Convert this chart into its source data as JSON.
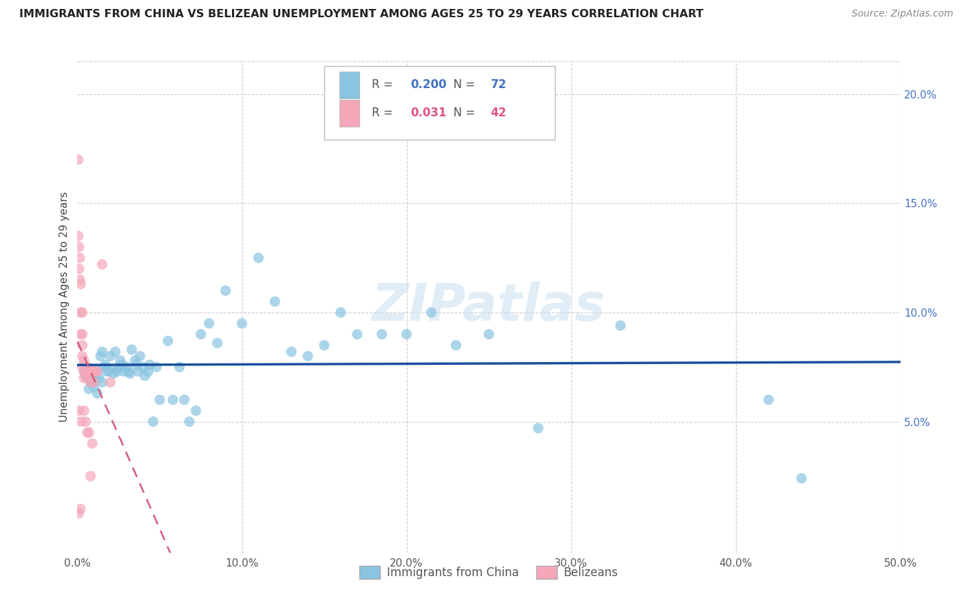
{
  "title": "IMMIGRANTS FROM CHINA VS BELIZEAN UNEMPLOYMENT AMONG AGES 25 TO 29 YEARS CORRELATION CHART",
  "source": "Source: ZipAtlas.com",
  "ylabel": "Unemployment Among Ages 25 to 29 years",
  "xlim": [
    0,
    0.5
  ],
  "ylim": [
    -0.01,
    0.215
  ],
  "xticks": [
    0.0,
    0.1,
    0.2,
    0.3,
    0.4,
    0.5
  ],
  "xticklabels": [
    "0.0%",
    "10.0%",
    "20.0%",
    "30.0%",
    "40.0%",
    "50.0%"
  ],
  "yticks": [
    0.05,
    0.1,
    0.15,
    0.2
  ],
  "yticklabels": [
    "5.0%",
    "10.0%",
    "15.0%",
    "20.0%"
  ],
  "blue_color": "#89c4e1",
  "pink_color": "#f4a7b9",
  "trend_blue": "#1a4f9c",
  "trend_pink": "#d45a7a",
  "legend_R1": "0.200",
  "legend_N1": "72",
  "legend_R2": "0.031",
  "legend_N2": "42",
  "watermark": "ZIPatlas",
  "blue_x": [
    0.004,
    0.005,
    0.006,
    0.007,
    0.007,
    0.008,
    0.009,
    0.009,
    0.01,
    0.01,
    0.011,
    0.012,
    0.012,
    0.013,
    0.014,
    0.015,
    0.015,
    0.016,
    0.017,
    0.018,
    0.019,
    0.02,
    0.021,
    0.022,
    0.023,
    0.024,
    0.025,
    0.026,
    0.027,
    0.028,
    0.03,
    0.031,
    0.032,
    0.033,
    0.035,
    0.036,
    0.037,
    0.038,
    0.04,
    0.041,
    0.043,
    0.044,
    0.046,
    0.048,
    0.05,
    0.055,
    0.058,
    0.062,
    0.065,
    0.068,
    0.072,
    0.075,
    0.08,
    0.085,
    0.09,
    0.1,
    0.11,
    0.12,
    0.13,
    0.14,
    0.15,
    0.16,
    0.17,
    0.185,
    0.2,
    0.215,
    0.23,
    0.25,
    0.28,
    0.33,
    0.42,
    0.44
  ],
  "blue_y": [
    0.073,
    0.071,
    0.07,
    0.072,
    0.065,
    0.068,
    0.072,
    0.069,
    0.066,
    0.068,
    0.071,
    0.063,
    0.074,
    0.07,
    0.08,
    0.068,
    0.082,
    0.075,
    0.076,
    0.073,
    0.073,
    0.08,
    0.074,
    0.072,
    0.082,
    0.073,
    0.075,
    0.078,
    0.076,
    0.073,
    0.075,
    0.073,
    0.072,
    0.083,
    0.078,
    0.076,
    0.073,
    0.08,
    0.075,
    0.071,
    0.073,
    0.076,
    0.05,
    0.075,
    0.06,
    0.087,
    0.06,
    0.075,
    0.06,
    0.05,
    0.055,
    0.09,
    0.095,
    0.086,
    0.11,
    0.095,
    0.125,
    0.105,
    0.082,
    0.08,
    0.085,
    0.1,
    0.09,
    0.09,
    0.09,
    0.1,
    0.085,
    0.09,
    0.047,
    0.094,
    0.06,
    0.024
  ],
  "pink_x": [
    0.0005,
    0.0005,
    0.0008,
    0.001,
    0.001,
    0.001,
    0.0015,
    0.0015,
    0.0018,
    0.002,
    0.002,
    0.002,
    0.002,
    0.003,
    0.003,
    0.003,
    0.003,
    0.003,
    0.004,
    0.004,
    0.004,
    0.004,
    0.005,
    0.005,
    0.005,
    0.006,
    0.006,
    0.006,
    0.006,
    0.007,
    0.007,
    0.008,
    0.008,
    0.008,
    0.009,
    0.009,
    0.01,
    0.01,
    0.011,
    0.012,
    0.015,
    0.02
  ],
  "pink_y": [
    0.17,
    0.135,
    0.008,
    0.13,
    0.12,
    0.055,
    0.125,
    0.115,
    0.01,
    0.113,
    0.1,
    0.09,
    0.05,
    0.1,
    0.09,
    0.085,
    0.08,
    0.075,
    0.078,
    0.073,
    0.07,
    0.055,
    0.075,
    0.072,
    0.05,
    0.075,
    0.073,
    0.07,
    0.045,
    0.073,
    0.045,
    0.073,
    0.068,
    0.025,
    0.073,
    0.04,
    0.073,
    0.068,
    0.073,
    0.073,
    0.122,
    0.068
  ]
}
